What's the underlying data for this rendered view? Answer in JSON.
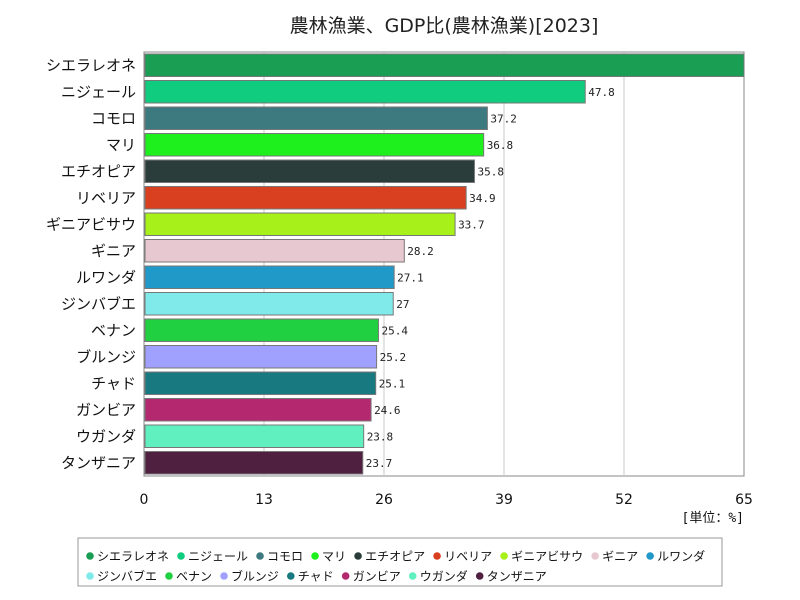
{
  "chart_data": {
    "type": "bar",
    "orientation": "horizontal",
    "title": "農林漁業、GDP比(農林漁業)[2023]",
    "unit_label": "[単位：%]",
    "xlim": [
      0,
      65
    ],
    "xticks": [
      0,
      13,
      26,
      39,
      52,
      65
    ],
    "grid": true,
    "legend_position": "bottom",
    "categories": [
      "シエラレオネ",
      "ニジェール",
      "コモロ",
      "マリ",
      "エチオピア",
      "リベリア",
      "ギニアビサウ",
      "ギニア",
      "ルワンダ",
      "ジンバブエ",
      "ベナン",
      "ブルンジ",
      "チャド",
      "ガンビア",
      "ウガンダ",
      "タンザニア"
    ],
    "values": [
      65,
      47.8,
      37.2,
      36.8,
      35.8,
      34.9,
      33.7,
      28.2,
      27.1,
      27,
      25.4,
      25.2,
      25.1,
      24.6,
      23.8,
      23.7
    ],
    "value_labels": [
      "",
      "47.8",
      "37.2",
      "36.8",
      "35.8",
      "34.9",
      "33.7",
      "28.2",
      "27.1",
      "27",
      "25.4",
      "25.2",
      "25.1",
      "24.6",
      "23.8",
      "23.7"
    ],
    "colors": [
      "#1a9e54",
      "#10cc7e",
      "#3d7a80",
      "#1ef01e",
      "#2a3d3a",
      "#d8401f",
      "#a7f01a",
      "#e8c8d0",
      "#2098c8",
      "#80eaea",
      "#20d040",
      "#a0a0ff",
      "#187a80",
      "#b42870",
      "#60f0c0",
      "#502040"
    ]
  }
}
